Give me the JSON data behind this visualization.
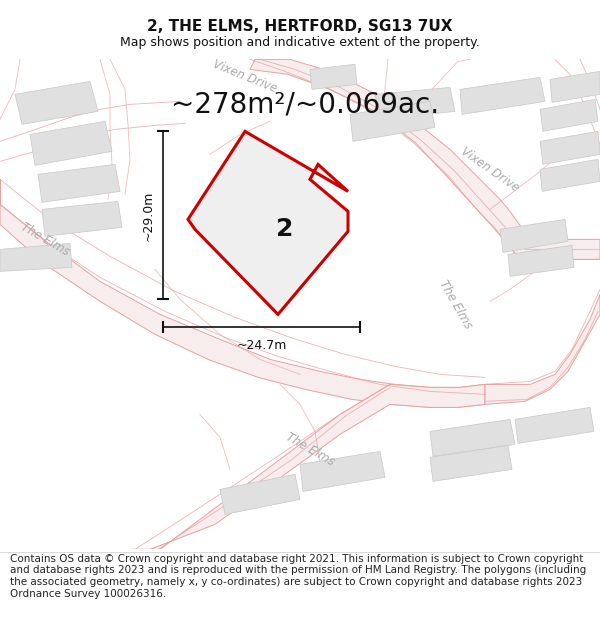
{
  "title": "2, THE ELMS, HERTFORD, SG13 7UX",
  "subtitle": "Map shows position and indicative extent of the property.",
  "area_text": "~278m²/~0.069ac.",
  "label_2": "2",
  "dim_height": "~29.0m",
  "dim_width": "~24.7m",
  "footer": "Contains OS data © Crown copyright and database right 2021. This information is subject to Crown copyright and database rights 2023 and is reproduced with the permission of HM Land Registry. The polygons (including the associated geometry, namely x, y co-ordinates) are subject to Crown copyright and database rights 2023 Ordnance Survey 100026316.",
  "map_bg": "#f2f2f2",
  "road_fill": "#f7eded",
  "road_line": "#e8a0a0",
  "road_line2": "#d08080",
  "building_fill": "#e0e0e0",
  "building_edge": "#c8c8c8",
  "plot_edge": "#cc0000",
  "plot_fill": "#efefef",
  "road_label_color": "#aaaaaa",
  "dim_line_color": "#111111",
  "title_fontsize": 11,
  "subtitle_fontsize": 9,
  "area_fontsize": 20,
  "dim_fontsize": 9,
  "label2_fontsize": 18,
  "road_label_fontsize": 8.5,
  "footer_fontsize": 7.5
}
